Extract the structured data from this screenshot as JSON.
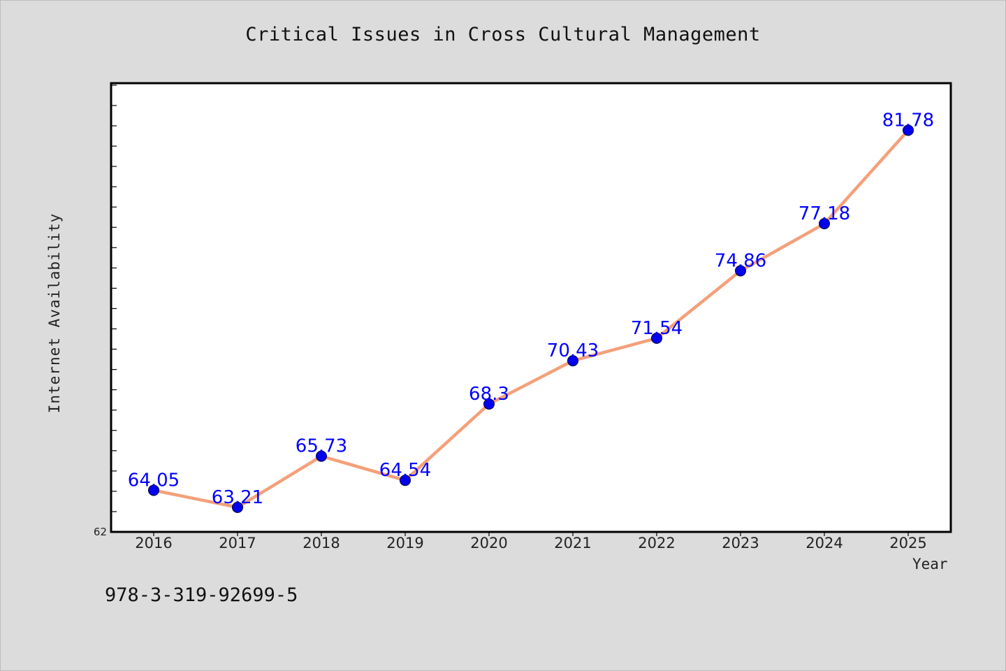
{
  "chart_data": {
    "type": "line",
    "title": "Critical Issues in Cross Cultural Management",
    "xlabel": "Year",
    "ylabel": "Internet Availability",
    "categories": [
      "2016",
      "2017",
      "2018",
      "2019",
      "2020",
      "2021",
      "2022",
      "2023",
      "2024",
      "2025"
    ],
    "series": [
      {
        "values": [
          64.05,
          63.21,
          65.73,
          64.54,
          68.3,
          70.43,
          71.54,
          74.86,
          77.18,
          81.78
        ],
        "labels": [
          "64.05",
          "63.21",
          "65.73",
          "64.54",
          "68.3",
          "70.43",
          "71.54",
          "74.86",
          "77.18",
          "81.78"
        ]
      }
    ],
    "y_tick_label": "62",
    "ylim": [
      62,
      84.1
    ],
    "grid": false,
    "colors": {
      "line": "#f4a07a",
      "marker": "#0000ee",
      "label": "#0000ff"
    }
  },
  "footnote": "978-3-319-92699-5"
}
